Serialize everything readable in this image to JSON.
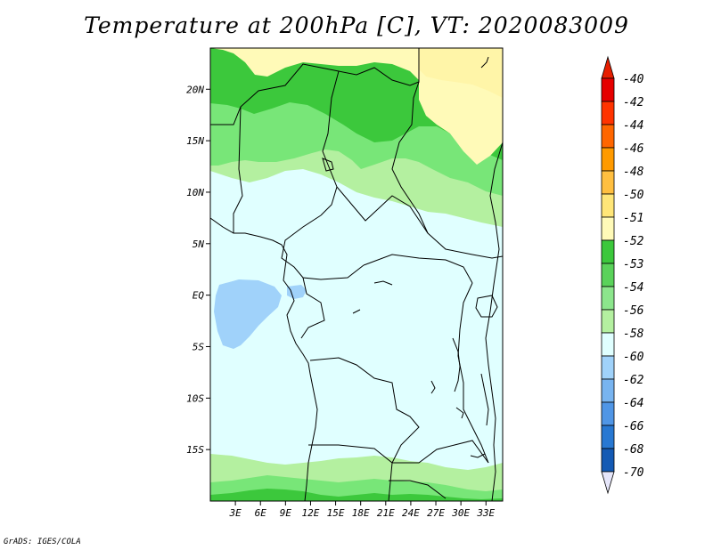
{
  "title": "Temperature at 200hPa [C], VT: 2020083009",
  "credit": "GrADS: IGES/COLA",
  "map": {
    "lon_range": [
      0,
      35
    ],
    "lat_range": [
      -20,
      24
    ],
    "lat_ticks": [
      {
        "value": 20,
        "label": "20N"
      },
      {
        "value": 15,
        "label": "15N"
      },
      {
        "value": 10,
        "label": "10N"
      },
      {
        "value": 5,
        "label": "5N"
      },
      {
        "value": 0,
        "label": "EQ"
      },
      {
        "value": -5,
        "label": "5S"
      },
      {
        "value": -10,
        "label": "10S"
      },
      {
        "value": -15,
        "label": "15S"
      }
    ],
    "lon_ticks": [
      {
        "value": 3,
        "label": "3E"
      },
      {
        "value": 6,
        "label": "6E"
      },
      {
        "value": 9,
        "label": "9E"
      },
      {
        "value": 12,
        "label": "12E"
      },
      {
        "value": 15,
        "label": "15E"
      },
      {
        "value": 18,
        "label": "18E"
      },
      {
        "value": 21,
        "label": "21E"
      },
      {
        "value": 24,
        "label": "24E"
      },
      {
        "value": 27,
        "label": "27E"
      },
      {
        "value": 30,
        "label": "30E"
      },
      {
        "value": 33,
        "label": "33E"
      }
    ],
    "colors": {
      "c_50": "#fff5a8",
      "c_51": "#fffab8",
      "c_52": "#3cc83c",
      "c_53": "#78e678",
      "c_54": "#b4f0a0",
      "c_56": "#e0ffff",
      "c_58": "#a0d2fa",
      "border": "#000000"
    }
  },
  "colorbar": {
    "levels": [
      {
        "label": "-40",
        "color": "#e60000"
      },
      {
        "label": "-42",
        "color": "#ff3300"
      },
      {
        "label": "-44",
        "color": "#ff6600"
      },
      {
        "label": "-46",
        "color": "#ff9a00"
      },
      {
        "label": "-48",
        "color": "#ffbf40"
      },
      {
        "label": "-50",
        "color": "#ffe678"
      },
      {
        "label": "-51",
        "color": "#fffab8"
      },
      {
        "label": "-52",
        "color": "#3cc83c"
      },
      {
        "label": "-53",
        "color": "#5ad25a"
      },
      {
        "label": "-54",
        "color": "#8ce68c"
      },
      {
        "label": "-56",
        "color": "#b4f0a0"
      },
      {
        "label": "-58",
        "color": "#e0ffff"
      },
      {
        "label": "-60",
        "color": "#a0d2fa"
      },
      {
        "label": "-62",
        "color": "#78b4f0"
      },
      {
        "label": "-64",
        "color": "#5096e6"
      },
      {
        "label": "-66",
        "color": "#2878d2"
      },
      {
        "label": "-68",
        "color": "#145ab4"
      },
      {
        "label": "-70",
        "color": "#0a3c8c"
      }
    ],
    "top_color": "#e61e00",
    "bottom_color": "#000064",
    "below_color": "#e6e6fa"
  }
}
